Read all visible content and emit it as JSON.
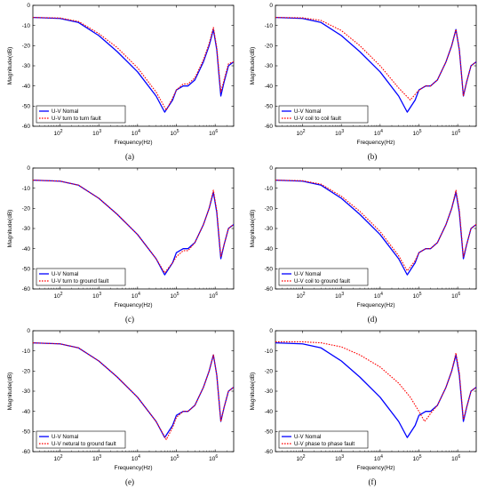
{
  "figure": {
    "captions": [
      "(a)",
      "(b)",
      "(c)",
      "(d)",
      "(e)",
      "(f)"
    ]
  },
  "colors": {
    "normal": "#0000ff",
    "fault": "#ff0000",
    "axis": "#000000"
  },
  "chart_data": [
    {
      "type": "line",
      "caption": "(a)",
      "xlabel": "Frequency(Hz)",
      "ylabel": "Magnitude(dB)",
      "xscale": "log",
      "xlim": [
        20,
        3000000
      ],
      "ylim": [
        -60,
        0
      ],
      "yticks": [
        0,
        -10,
        -20,
        -30,
        -40,
        -50,
        -60
      ],
      "xticks": [
        "10^2",
        "10^3",
        "10^4",
        "10^5",
        "10^6"
      ],
      "grid": false,
      "legend_position": "bottom-left",
      "series": [
        {
          "name": "U-V Nomal",
          "style": "solid",
          "x": [
            20,
            100,
            300,
            1000,
            3000,
            10000,
            30000,
            50000,
            80000,
            100000,
            150000,
            200000,
            300000,
            500000,
            700000,
            900000,
            1100000,
            1400000,
            1700000,
            2200000,
            3000000
          ],
          "y": [
            -6,
            -6.5,
            -8.5,
            -15,
            -23,
            -33,
            -45,
            -53,
            -47,
            -42,
            -40,
            -40,
            -37,
            -28,
            -20,
            -12,
            -22,
            -45,
            -38,
            -30,
            -28
          ]
        },
        {
          "name": "U-V turn to turn fault",
          "style": "dotted",
          "x": [
            20,
            100,
            300,
            1000,
            3000,
            10000,
            30000,
            55000,
            80000,
            100000,
            150000,
            200000,
            300000,
            500000,
            700000,
            900000,
            1100000,
            1400000,
            1700000,
            2200000,
            3000000
          ],
          "y": [
            -6,
            -6.3,
            -8,
            -14,
            -21,
            -31,
            -43,
            -52,
            -46,
            -42,
            -39,
            -39,
            -36,
            -27,
            -19,
            -11,
            -21,
            -43,
            -37,
            -29,
            -28
          ]
        }
      ]
    },
    {
      "type": "line",
      "caption": "(b)",
      "xlabel": "Frequency(Hz)",
      "ylabel": "Magnitude(dB)",
      "xscale": "log",
      "xlim": [
        20,
        3000000
      ],
      "ylim": [
        -60,
        0
      ],
      "yticks": [
        0,
        -10,
        -20,
        -30,
        -40,
        -50,
        -60
      ],
      "xticks": [
        "10^2",
        "10^3",
        "10^4",
        "10^5",
        "10^6"
      ],
      "grid": false,
      "legend_position": "bottom-left",
      "series": [
        {
          "name": "U-V Nomal",
          "style": "solid",
          "x": [
            20,
            100,
            300,
            1000,
            3000,
            10000,
            30000,
            50000,
            80000,
            100000,
            150000,
            200000,
            300000,
            500000,
            700000,
            900000,
            1100000,
            1400000,
            1700000,
            2200000,
            3000000
          ],
          "y": [
            -6,
            -6.5,
            -8.5,
            -15,
            -23,
            -33,
            -45,
            -53,
            -47,
            -42,
            -40,
            -40,
            -37,
            -28,
            -20,
            -12,
            -22,
            -45,
            -38,
            -30,
            -28
          ]
        },
        {
          "name": "U-V coil to coil fault",
          "style": "dotted",
          "x": [
            20,
            100,
            300,
            1000,
            3000,
            10000,
            30000,
            60000,
            90000,
            120000,
            150000,
            200000,
            300000,
            500000,
            700000,
            900000,
            1100000,
            1400000,
            1700000,
            2200000,
            3000000
          ],
          "y": [
            -6,
            -6.2,
            -7.5,
            -12.5,
            -20,
            -30,
            -41,
            -47,
            -43,
            -41,
            -40,
            -40,
            -37,
            -28,
            -20,
            -12,
            -22,
            -45,
            -38,
            -30,
            -28
          ]
        }
      ]
    },
    {
      "type": "line",
      "caption": "(c)",
      "xlabel": "Frequency(Hz)",
      "ylabel": "Magnitude(dB)",
      "xscale": "log",
      "xlim": [
        20,
        3000000
      ],
      "ylim": [
        -60,
        0
      ],
      "yticks": [
        0,
        -10,
        -20,
        -30,
        -40,
        -50,
        -60
      ],
      "xticks": [
        "10^2",
        "10^3",
        "10^4",
        "10^5",
        "10^6"
      ],
      "grid": false,
      "legend_position": "bottom-left",
      "series": [
        {
          "name": "U-V Nomal",
          "style": "solid",
          "x": [
            20,
            100,
            300,
            1000,
            3000,
            10000,
            30000,
            50000,
            80000,
            100000,
            150000,
            200000,
            300000,
            500000,
            700000,
            900000,
            1100000,
            1400000,
            1700000,
            2200000,
            3000000
          ],
          "y": [
            -6,
            -6.5,
            -8.5,
            -15,
            -23,
            -33,
            -45,
            -53,
            -47,
            -42,
            -40,
            -40,
            -37,
            -28,
            -20,
            -12,
            -22,
            -45,
            -38,
            -30,
            -28
          ]
        },
        {
          "name": "U-V turn to ground fault",
          "style": "dotted",
          "x": [
            20,
            100,
            300,
            1000,
            3000,
            10000,
            30000,
            50000,
            80000,
            100000,
            150000,
            200000,
            300000,
            500000,
            700000,
            900000,
            1100000,
            1400000,
            1700000,
            2200000,
            3000000
          ],
          "y": [
            -6,
            -6.5,
            -8.5,
            -15,
            -23,
            -33,
            -45,
            -52,
            -47,
            -44,
            -41,
            -41,
            -37,
            -28,
            -20,
            -11,
            -21,
            -44,
            -38,
            -30,
            -28
          ]
        }
      ]
    },
    {
      "type": "line",
      "caption": "(d)",
      "xlabel": "Frequency(Hz)",
      "ylabel": "Magnitude(dB)",
      "xscale": "log",
      "xlim": [
        20,
        3000000
      ],
      "ylim": [
        -60,
        0
      ],
      "yticks": [
        0,
        -10,
        -20,
        -30,
        -40,
        -50,
        -60
      ],
      "xticks": [
        "10^2",
        "10^3",
        "10^4",
        "10^5",
        "10^6"
      ],
      "grid": false,
      "legend_position": "bottom-left",
      "series": [
        {
          "name": "U-V Nomal",
          "style": "solid",
          "x": [
            20,
            100,
            300,
            1000,
            3000,
            10000,
            30000,
            50000,
            80000,
            100000,
            150000,
            200000,
            300000,
            500000,
            700000,
            900000,
            1100000,
            1400000,
            1700000,
            2200000,
            3000000
          ],
          "y": [
            -6,
            -6.5,
            -8.5,
            -15,
            -23,
            -33,
            -45,
            -53,
            -47,
            -42,
            -40,
            -40,
            -37,
            -28,
            -20,
            -12,
            -22,
            -45,
            -38,
            -30,
            -28
          ]
        },
        {
          "name": "U-V coil to ground fault",
          "style": "dotted",
          "x": [
            20,
            100,
            300,
            1000,
            3000,
            10000,
            30000,
            50000,
            80000,
            100000,
            150000,
            200000,
            300000,
            500000,
            700000,
            900000,
            1100000,
            1400000,
            1700000,
            2200000,
            3000000
          ],
          "y": [
            -6,
            -6.3,
            -8,
            -14,
            -21.5,
            -31.5,
            -43.5,
            -51,
            -46,
            -42,
            -40,
            -40,
            -37,
            -28,
            -20,
            -11,
            -21,
            -44,
            -38,
            -30,
            -28
          ]
        }
      ]
    },
    {
      "type": "line",
      "caption": "(e)",
      "xlabel": "Frequency(Hz)",
      "ylabel": "Magnitude(dB)",
      "xscale": "log",
      "xlim": [
        20,
        3000000
      ],
      "ylim": [
        -60,
        0
      ],
      "yticks": [
        0,
        -10,
        -20,
        -30,
        -40,
        -50,
        -60
      ],
      "xticks": [
        "10^2",
        "10^3",
        "10^4",
        "10^5",
        "10^6"
      ],
      "grid": false,
      "legend_position": "bottom-left",
      "series": [
        {
          "name": "U-V Nomal",
          "style": "solid",
          "x": [
            20,
            100,
            300,
            1000,
            3000,
            10000,
            30000,
            50000,
            80000,
            100000,
            150000,
            200000,
            300000,
            500000,
            700000,
            900000,
            1100000,
            1400000,
            1700000,
            2200000,
            3000000
          ],
          "y": [
            -6,
            -6.5,
            -8.5,
            -15,
            -23,
            -33,
            -45,
            -53,
            -47,
            -42,
            -40,
            -40,
            -37,
            -28,
            -20,
            -12,
            -22,
            -45,
            -38,
            -30,
            -28
          ]
        },
        {
          "name": "U-V netural to ground fault",
          "style": "dotted",
          "x": [
            20,
            100,
            300,
            1000,
            3000,
            10000,
            30000,
            55000,
            80000,
            100000,
            150000,
            200000,
            300000,
            500000,
            700000,
            900000,
            1100000,
            1400000,
            1700000,
            2200000,
            3000000
          ],
          "y": [
            -6,
            -6.5,
            -8.5,
            -15,
            -23,
            -33,
            -45,
            -54,
            -48,
            -43,
            -40,
            -40,
            -37,
            -28,
            -20,
            -12,
            -22,
            -45,
            -38,
            -30,
            -28
          ]
        }
      ]
    },
    {
      "type": "line",
      "caption": "(f)",
      "xlabel": "Frequency(Hz)",
      "ylabel": "Magnitude(dB)",
      "xscale": "log",
      "xlim": [
        20,
        3000000
      ],
      "ylim": [
        -60,
        0
      ],
      "yticks": [
        0,
        -10,
        -20,
        -30,
        -40,
        -50,
        -60
      ],
      "xticks": [
        "10^2",
        "10^3",
        "10^4",
        "10^5",
        "10^6"
      ],
      "grid": false,
      "legend_position": "bottom-left",
      "series": [
        {
          "name": "U-V Nomal",
          "style": "solid",
          "x": [
            20,
            100,
            300,
            1000,
            3000,
            10000,
            30000,
            50000,
            80000,
            100000,
            150000,
            200000,
            300000,
            500000,
            700000,
            900000,
            1100000,
            1400000,
            1700000,
            2200000,
            3000000
          ],
          "y": [
            -6,
            -6.5,
            -8.5,
            -15,
            -23,
            -33,
            -45,
            -53,
            -47,
            -42,
            -40,
            -40,
            -37,
            -28,
            -20,
            -12,
            -22,
            -45,
            -38,
            -30,
            -28
          ]
        },
        {
          "name": "U-V phase to phase fault",
          "style": "dotted",
          "x": [
            20,
            100,
            300,
            1000,
            3000,
            10000,
            30000,
            60000,
            100000,
            140000,
            170000,
            200000,
            300000,
            500000,
            700000,
            900000,
            1100000,
            1400000,
            1700000,
            2200000,
            3000000
          ],
          "y": [
            -5.5,
            -5.5,
            -6,
            -8,
            -12,
            -18,
            -26,
            -33,
            -40,
            -45,
            -43,
            -41,
            -37,
            -28,
            -20,
            -11,
            -21,
            -44,
            -38,
            -30,
            -28
          ]
        }
      ]
    }
  ]
}
